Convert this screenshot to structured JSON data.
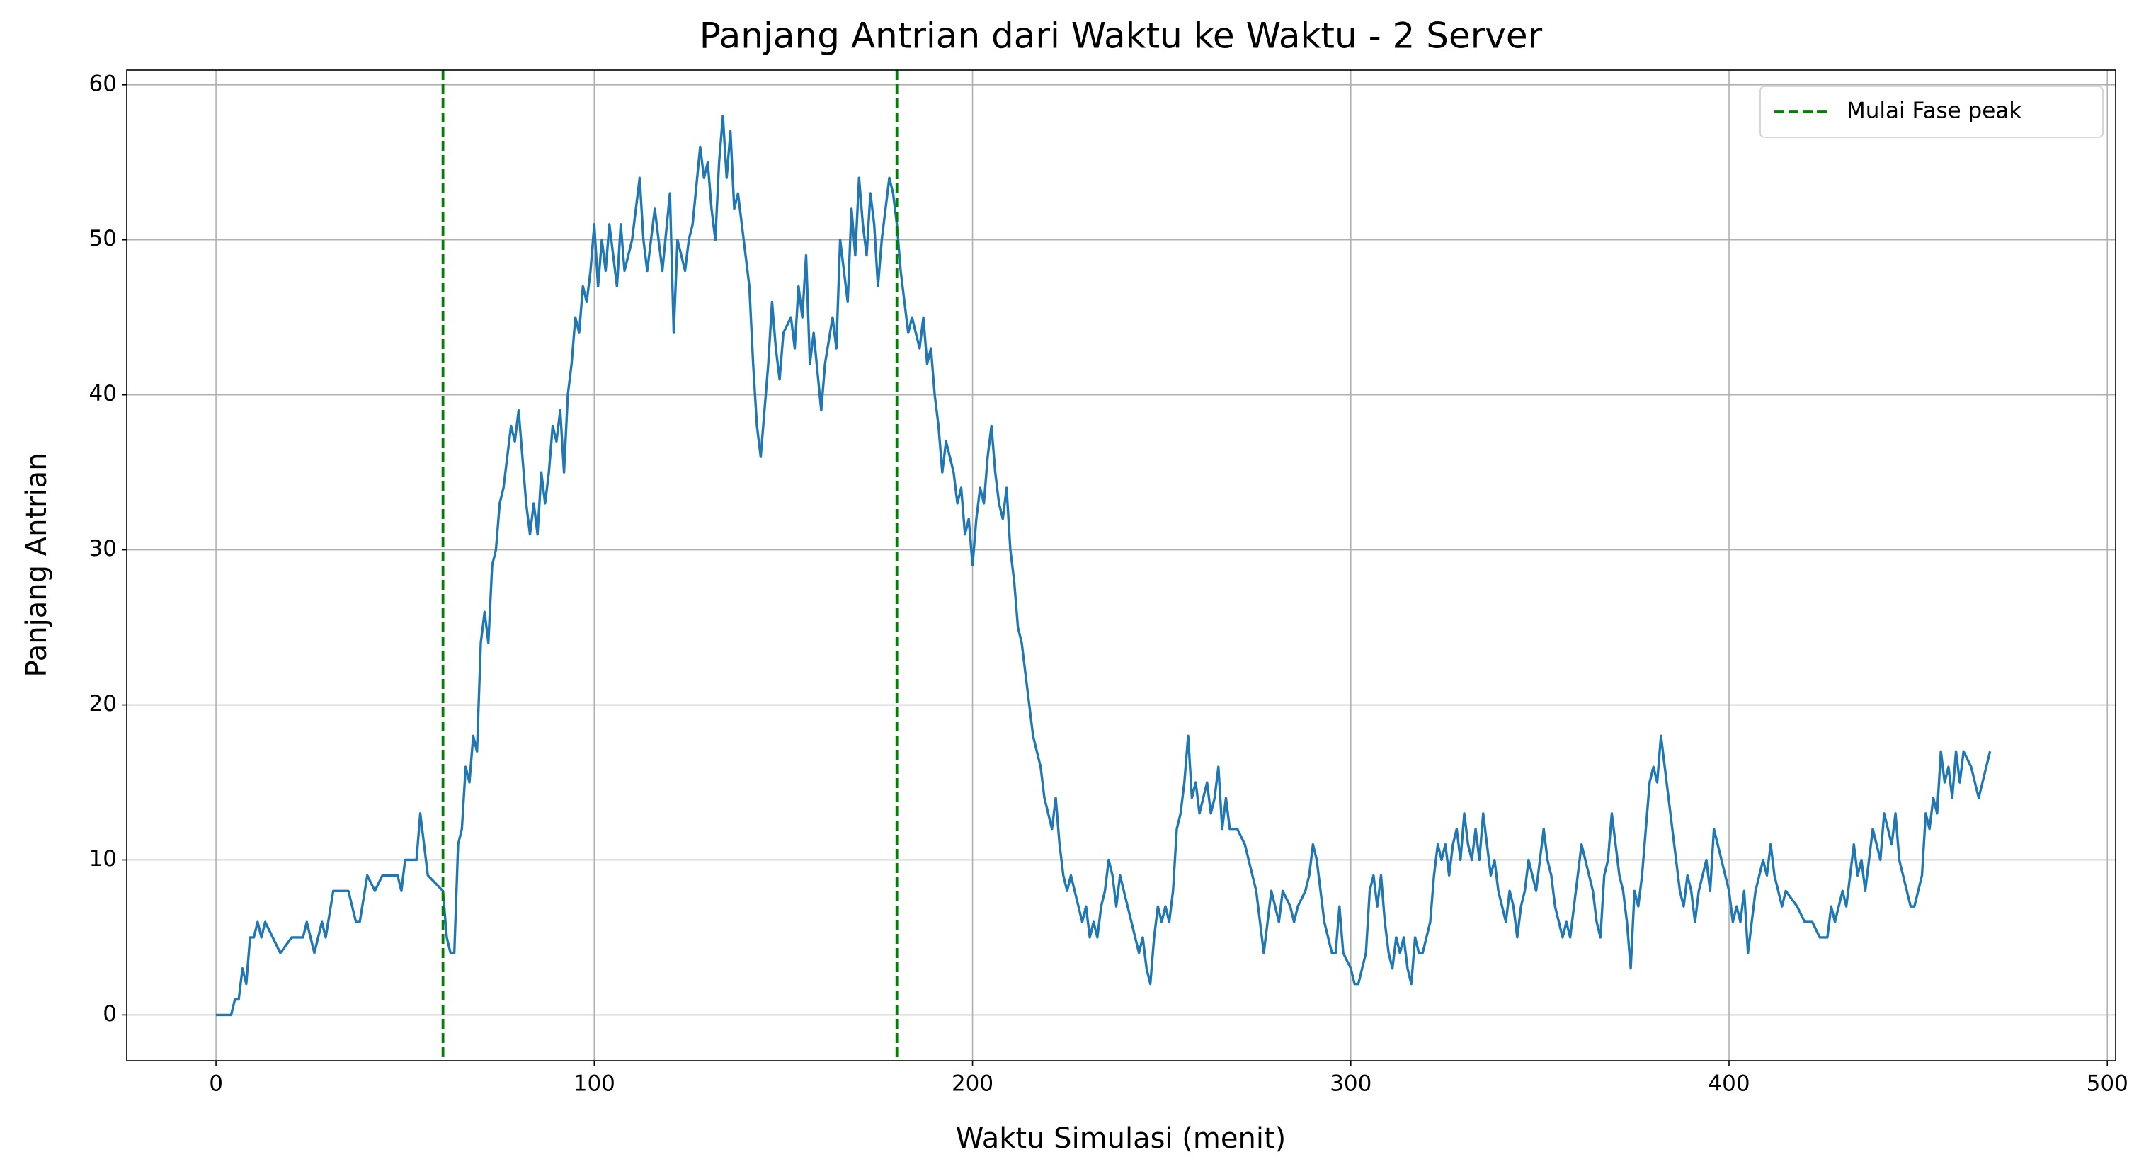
{
  "chart_data": {
    "type": "line",
    "title": "Panjang Antrian dari Waktu ke Waktu - 2 Server",
    "x_label": "Waktu Simulasi (menit)",
    "y_label": "Panjang Antrian",
    "xlim": [
      -23.6,
      502.2
    ],
    "ylim": [
      -2.95,
      60.95
    ],
    "xticks": [
      0,
      100,
      200,
      300,
      400,
      500
    ],
    "yticks": [
      0,
      10,
      20,
      30,
      40,
      50,
      60
    ],
    "grid": true,
    "legend": "upper right",
    "vlines": {
      "name": "Mulai Fase peak",
      "color": "#008000",
      "x": [
        60,
        180
      ]
    },
    "series": [
      {
        "name": "Panjang Antrian",
        "color": "#1f77b4",
        "x": [
          0,
          4,
          5,
          6,
          7,
          8,
          9,
          10,
          11,
          12,
          13,
          15,
          17,
          20,
          23,
          24,
          26,
          28,
          29,
          31,
          35,
          37,
          38,
          40,
          42,
          44,
          48,
          49,
          50,
          53,
          54,
          55,
          56,
          60,
          61,
          62,
          63,
          64,
          65,
          66,
          67,
          68,
          69,
          70,
          71,
          72,
          73,
          74,
          75,
          76,
          77,
          78,
          79,
          80,
          81,
          82,
          83,
          84,
          85,
          86,
          87,
          88,
          89,
          90,
          91,
          92,
          93,
          94,
          95,
          96,
          97,
          98,
          99,
          100,
          101,
          102,
          103,
          104,
          105,
          106,
          107,
          108,
          110,
          112,
          113,
          114,
          116,
          118,
          120,
          121,
          122,
          124,
          125,
          126,
          128,
          129,
          130,
          131,
          132,
          133,
          134,
          135,
          136,
          137,
          138,
          140,
          141,
          142,
          143,
          144,
          145,
          146,
          147,
          148,
          149,
          150,
          152,
          153,
          154,
          155,
          156,
          157,
          158,
          160,
          161,
          163,
          164,
          165,
          166,
          167,
          168,
          169,
          170,
          171,
          172,
          173,
          174,
          175,
          176,
          177,
          178,
          179,
          180,
          181,
          182,
          183,
          184,
          186,
          187,
          188,
          189,
          190,
          191,
          192,
          193,
          195,
          196,
          197,
          198,
          199,
          200,
          201,
          202,
          203,
          204,
          205,
          206,
          207,
          208,
          209,
          210,
          211,
          212,
          213,
          214,
          215,
          216,
          217,
          218,
          219,
          220,
          221,
          222,
          223,
          224,
          225,
          226,
          227,
          228,
          229,
          230,
          231,
          232,
          233,
          234,
          235,
          236,
          237,
          238,
          239,
          240,
          241,
          242,
          243,
          244,
          245,
          246,
          247,
          248,
          249,
          250,
          251,
          252,
          253,
          254,
          255,
          256,
          257,
          258,
          259,
          260,
          261,
          262,
          263,
          264,
          265,
          266,
          267,
          268,
          270,
          272,
          273,
          274,
          275,
          276,
          277,
          278,
          279,
          280,
          281,
          282,
          284,
          285,
          286,
          288,
          289,
          290,
          291,
          292,
          293,
          294,
          295,
          296,
          297,
          298,
          300,
          301,
          302,
          303,
          304,
          305,
          306,
          307,
          308,
          309,
          310,
          311,
          312,
          313,
          314,
          315,
          316,
          317,
          318,
          319,
          320,
          321,
          322,
          323,
          324,
          325,
          326,
          327,
          328,
          329,
          330,
          331,
          332,
          333,
          334,
          335,
          336,
          337,
          338,
          339,
          340,
          341,
          342,
          343,
          344,
          345,
          346,
          347,
          348,
          349,
          350,
          351,
          352,
          353,
          354,
          355,
          356,
          357,
          358,
          360,
          361,
          362,
          363,
          364,
          365,
          366,
          367,
          368,
          369,
          370,
          371,
          372,
          373,
          374,
          375,
          376,
          377,
          378,
          379,
          380,
          381,
          382,
          383,
          384,
          385,
          386,
          387,
          388,
          389,
          390,
          391,
          392,
          393,
          394,
          395,
          396,
          397,
          398,
          399,
          400,
          401,
          402,
          403,
          404,
          405,
          406,
          407,
          408,
          409,
          410,
          411,
          412,
          413,
          414,
          415,
          418,
          420,
          422,
          424,
          426,
          427,
          428,
          430,
          431,
          432,
          433,
          434,
          435,
          436,
          437,
          438,
          439,
          440,
          441,
          442,
          443,
          444,
          445,
          446,
          447,
          448,
          449,
          450,
          451,
          452,
          453,
          454,
          455,
          456,
          457,
          458,
          459,
          460,
          461,
          462,
          464,
          466,
          468,
          469
        ],
        "values": [
          0,
          0,
          1,
          1,
          3,
          2,
          5,
          5,
          6,
          5,
          6,
          5,
          4,
          5,
          5,
          6,
          4,
          6,
          5,
          8,
          8,
          6,
          6,
          9,
          8,
          9,
          9,
          8,
          10,
          10,
          13,
          11,
          9,
          8,
          5,
          4,
          4,
          11,
          12,
          16,
          15,
          18,
          17,
          24,
          26,
          24,
          29,
          30,
          33,
          34,
          36,
          38,
          37,
          39,
          36,
          33,
          31,
          33,
          31,
          35,
          33,
          35,
          38,
          37,
          39,
          35,
          40,
          42,
          45,
          44,
          47,
          46,
          48,
          51,
          47,
          50,
          48,
          51,
          49,
          47,
          51,
          48,
          50,
          54,
          50,
          48,
          52,
          48,
          53,
          44,
          50,
          48,
          50,
          51,
          56,
          54,
          55,
          52,
          50,
          55,
          58,
          54,
          57,
          52,
          53,
          49,
          47,
          42,
          38,
          36,
          39,
          42,
          46,
          43,
          41,
          44,
          45,
          43,
          47,
          45,
          49,
          42,
          44,
          39,
          42,
          45,
          43,
          50,
          48,
          46,
          52,
          49,
          54,
          51,
          49,
          53,
          51,
          47,
          50,
          52,
          54,
          53,
          51,
          48,
          46,
          44,
          45,
          43,
          45,
          42,
          43,
          40,
          38,
          35,
          37,
          35,
          33,
          34,
          31,
          32,
          29,
          32,
          34,
          33,
          36,
          38,
          35,
          33,
          32,
          34,
          30,
          28,
          25,
          24,
          22,
          20,
          18,
          17,
          16,
          14,
          13,
          12,
          14,
          11,
          9,
          8,
          9,
          8,
          7,
          6,
          7,
          5,
          6,
          5,
          7,
          8,
          10,
          9,
          7,
          9,
          8,
          7,
          6,
          5,
          4,
          5,
          3,
          2,
          5,
          7,
          6,
          7,
          6,
          8,
          12,
          13,
          15,
          18,
          14,
          15,
          13,
          14,
          15,
          13,
          14,
          16,
          12,
          14,
          12,
          12,
          11,
          10,
          9,
          8,
          6,
          4,
          6,
          8,
          7,
          6,
          8,
          7,
          6,
          7,
          8,
          9,
          11,
          10,
          8,
          6,
          5,
          4,
          4,
          7,
          4,
          3,
          2,
          2,
          3,
          4,
          8,
          9,
          7,
          9,
          6,
          4,
          3,
          5,
          4,
          5,
          3,
          2,
          5,
          4,
          4,
          5,
          6,
          9,
          11,
          10,
          11,
          9,
          11,
          12,
          10,
          13,
          11,
          10,
          12,
          10,
          13,
          11,
          9,
          10,
          8,
          7,
          6,
          8,
          7,
          5,
          7,
          8,
          10,
          9,
          8,
          10,
          12,
          10,
          9,
          7,
          6,
          5,
          6,
          5,
          9,
          11,
          10,
          9,
          8,
          6,
          5,
          9,
          10,
          13,
          11,
          9,
          8,
          6,
          3,
          8,
          7,
          9,
          12,
          15,
          16,
          15,
          18,
          16,
          14,
          12,
          10,
          8,
          7,
          9,
          8,
          6,
          8,
          9,
          10,
          8,
          12,
          11,
          10,
          9,
          8,
          6,
          7,
          6,
          8,
          4,
          6,
          8,
          9,
          10,
          9,
          11,
          9,
          8,
          7,
          8,
          7,
          6,
          6,
          5,
          5,
          7,
          6,
          8,
          7,
          9,
          11,
          9,
          10,
          8,
          10,
          12,
          11,
          10,
          13,
          12,
          11,
          13,
          10,
          9,
          8,
          7,
          7,
          8,
          9,
          13,
          12,
          14,
          13,
          17,
          15,
          16,
          14,
          17,
          15,
          17,
          16,
          14,
          16,
          17
        ]
      }
    ]
  }
}
